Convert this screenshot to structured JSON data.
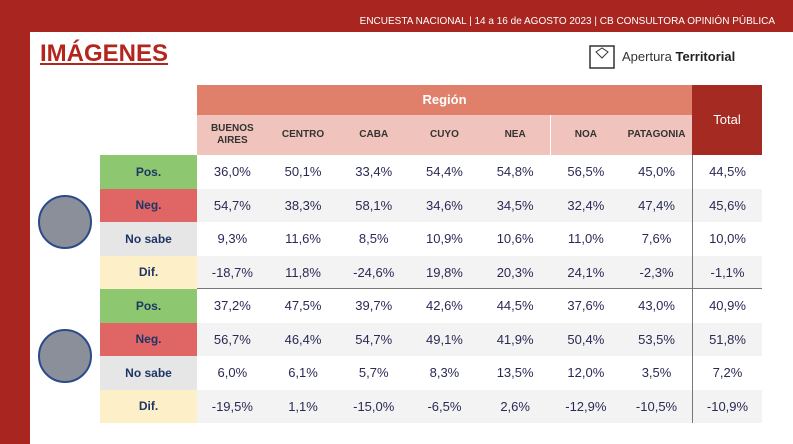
{
  "header": {
    "topline": "ENCUESTA NACIONAL | 14 a 16 de AGOSTO 2023 | CB CONSULTORA OPINIÓN PÚBLICA",
    "title": "IMÁGENES",
    "logo_light": "Apertura",
    "logo_bold": "Territorial"
  },
  "table": {
    "group_header": "Región",
    "total_header": "Total",
    "columns": [
      "BUENOS AIRES",
      "CENTRO",
      "CABA",
      "CUYO",
      "NEA",
      "NOA",
      "PATAGONIA"
    ],
    "groups": [
      {
        "rows": [
          {
            "label": "Pos.",
            "values": [
              "36,0%",
              "50,1%",
              "33,4%",
              "54,4%",
              "54,8%",
              "56,5%",
              "45,0%"
            ],
            "total": "44,5%"
          },
          {
            "label": "Neg.",
            "values": [
              "54,7%",
              "38,3%",
              "58,1%",
              "34,6%",
              "34,5%",
              "32,4%",
              "47,4%"
            ],
            "total": "45,6%"
          },
          {
            "label": "No sabe",
            "values": [
              "9,3%",
              "11,6%",
              "8,5%",
              "10,9%",
              "10,6%",
              "11,0%",
              "7,6%"
            ],
            "total": "10,0%"
          },
          {
            "label": "Dif.",
            "values": [
              "-18,7%",
              "11,8%",
              "-24,6%",
              "19,8%",
              "20,3%",
              "24,1%",
              "-2,3%"
            ],
            "total": "-1,1%"
          }
        ]
      },
      {
        "rows": [
          {
            "label": "Pos.",
            "values": [
              "37,2%",
              "47,5%",
              "39,7%",
              "42,6%",
              "44,5%",
              "37,6%",
              "43,0%"
            ],
            "total": "40,9%"
          },
          {
            "label": "Neg.",
            "values": [
              "56,7%",
              "46,4%",
              "54,7%",
              "49,1%",
              "41,9%",
              "50,4%",
              "53,5%"
            ],
            "total": "51,8%"
          },
          {
            "label": "No sabe",
            "values": [
              "6,0%",
              "6,1%",
              "5,7%",
              "8,3%",
              "13,5%",
              "12,0%",
              "3,5%"
            ],
            "total": "7,2%"
          },
          {
            "label": "Dif.",
            "values": [
              "-19,5%",
              "1,1%",
              "-15,0%",
              "-6,5%",
              "2,6%",
              "-12,9%",
              "-10,5%"
            ],
            "total": "-10,9%"
          }
        ]
      }
    ]
  }
}
